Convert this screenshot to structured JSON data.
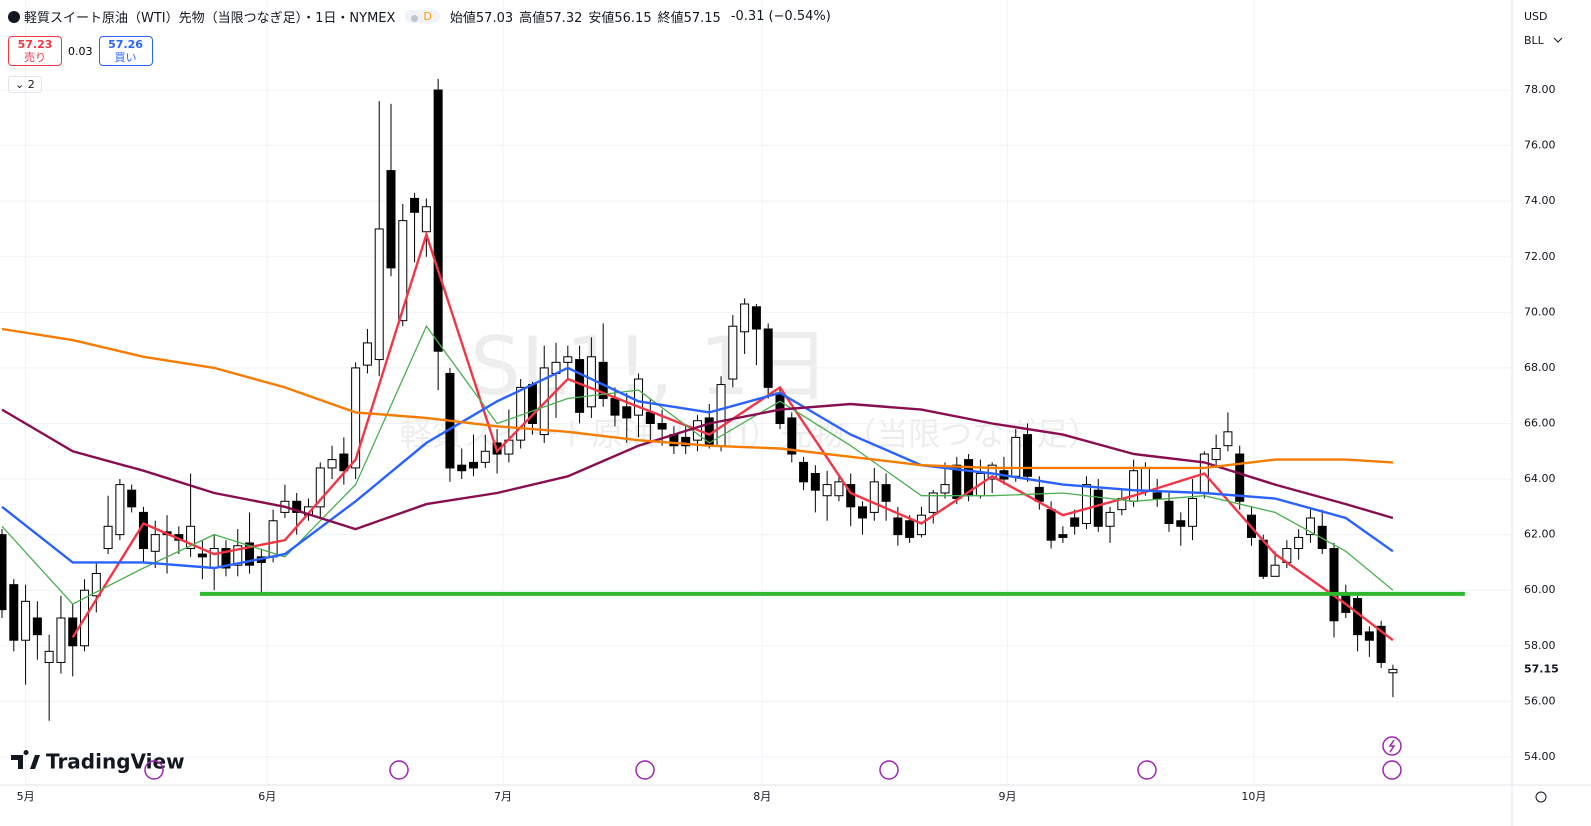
{
  "header": {
    "title": "軽質スイート原油（WTI）先物（当限つなぎ足）・1日・NYMEX",
    "interval_badge": "D",
    "ohlc": [
      {
        "label": "始値",
        "value": 57.03
      },
      {
        "label": "高値",
        "value": 57.32
      },
      {
        "label": "安値",
        "value": 56.15
      },
      {
        "label": "終値",
        "value": 57.15
      }
    ],
    "change": -0.31,
    "change_pct": {
      "value": -0.54,
      "label": "(−0.54%)"
    },
    "sell": {
      "price": 57.23,
      "label": "売り"
    },
    "spread": 0.03,
    "buy": {
      "price": 57.26,
      "label": "買い"
    },
    "indicator_count": 2
  },
  "watermark": {
    "symbol": "SL1!, 1日",
    "name": "軽質スイート原油（WTI）先物（当限つなぎ足）"
  },
  "axis_meta": {
    "currency": "USD",
    "unit": "BLL"
  },
  "logo": "TradingView",
  "chart_data": {
    "type": "candlestick",
    "xlim": [
      -0.17,
      128.1
    ],
    "ylim": [
      52.99,
      81.24
    ],
    "xticks": [
      {
        "value": 2,
        "label": "5月"
      },
      {
        "value": 22.5,
        "label": "6月"
      },
      {
        "value": 42.5,
        "label": "7月"
      },
      {
        "value": 64.5,
        "label": "8月"
      },
      {
        "value": 85.3,
        "label": "9月"
      },
      {
        "value": 106.2,
        "label": "10月"
      }
    ],
    "yticks": [
      {
        "value": 54,
        "label": "54.00"
      },
      {
        "value": 56,
        "label": "56.00"
      },
      {
        "value": 58,
        "label": "58.00"
      },
      {
        "value": 60,
        "label": "60.00"
      },
      {
        "value": 62,
        "label": "62.00"
      },
      {
        "value": 64,
        "label": "64.00"
      },
      {
        "value": 66,
        "label": "66.00"
      },
      {
        "value": 68,
        "label": "68.00"
      },
      {
        "value": 70,
        "label": "70.00"
      },
      {
        "value": 72,
        "label": "72.00"
      },
      {
        "value": 74,
        "label": "74.00"
      },
      {
        "value": 76,
        "label": "76.00"
      },
      {
        "value": 78,
        "label": "78.00"
      }
    ],
    "grid": true,
    "up_color": "#ffffff",
    "down_color": "#000000",
    "last_price": {
      "value": 57.15,
      "label": "57.15"
    },
    "candles": {
      "open": [
        62.0,
        60.2,
        58.2,
        59.0,
        57.4,
        57.4,
        59.0,
        58.0,
        59.8,
        61.5,
        62.0,
        63.6,
        62.8,
        61.4,
        62.1,
        62.0,
        61.5,
        61.3,
        60.8,
        61.5,
        60.9,
        61.7,
        61.2,
        61.2,
        62.8,
        63.2,
        62.7,
        63.0,
        64.4,
        64.9,
        64.4,
        68.1,
        68.3,
        75.1,
        69.7,
        74.1,
        72.9,
        78.0,
        67.8,
        64.5,
        64.6,
        64.6,
        65.3,
        64.9,
        65.4,
        67.4,
        65.6,
        67.8,
        68.2,
        68.3,
        66.6,
        68.2,
        66.9,
        66.6,
        66.3,
        66.4,
        66.0,
        65.6,
        65.5,
        65.4,
        66.2,
        65.2,
        67.6,
        69.3,
        70.2,
        69.4,
        67.1,
        66.2,
        64.6,
        64.2,
        63.4,
        63.4,
        63.8,
        63.0,
        62.8,
        63.8,
        62.6,
        62.5,
        62.0,
        62.8,
        63.5,
        64.5,
        64.7,
        63.4,
        64.0,
        64.3,
        64.1,
        65.6,
        63.7,
        62.9,
        62.0,
        62.6,
        62.4,
        63.6,
        62.3,
        62.9,
        63.2,
        63.6,
        63.5,
        63.2,
        62.5,
        62.3,
        63.5,
        64.7,
        65.2,
        64.9,
        62.7,
        61.8,
        60.5,
        61.0,
        61.5,
        62.0,
        62.3,
        61.5,
        59.8,
        59.7,
        58.5,
        58.7,
        57.03
      ],
      "high": [
        62.2,
        60.4,
        60.2,
        59.6,
        58.4,
        59.8,
        59.5,
        60.4,
        61.0,
        63.4,
        64.0,
        63.8,
        63.0,
        62.5,
        62.7,
        62.3,
        64.2,
        61.8,
        62.0,
        61.8,
        62.2,
        62.8,
        61.5,
        62.9,
        63.8,
        63.5,
        63.3,
        64.6,
        65.2,
        65.5,
        68.2,
        69.4,
        77.6,
        77.5,
        73.9,
        74.3,
        74.1,
        78.4,
        68.0,
        65.1,
        65.6,
        65.6,
        65.8,
        66.5,
        67.6,
        67.5,
        68.8,
        68.9,
        68.8,
        68.8,
        69.1,
        69.6,
        67.3,
        67.1,
        67.8,
        66.9,
        66.5,
        65.9,
        65.9,
        66.3,
        66.7,
        67.7,
        69.9,
        70.5,
        70.3,
        69.6,
        67.3,
        66.4,
        64.8,
        64.5,
        64.3,
        64.2,
        64.2,
        63.2,
        64.4,
        64.2,
        63.0,
        62.7,
        63.0,
        63.6,
        64.6,
        64.8,
        64.9,
        64.7,
        64.6,
        64.8,
        65.8,
        66.0,
        64.1,
        63.2,
        62.3,
        62.9,
        64.1,
        64.0,
        63.0,
        63.6,
        64.7,
        64.6,
        64.0,
        63.5,
        62.8,
        64.0,
        65.0,
        65.6,
        66.4,
        65.2,
        63.0,
        62.0,
        61.4,
        61.8,
        62.2,
        62.9,
        62.9,
        61.7,
        60.2,
        59.8,
        58.7,
        58.9,
        57.32
      ],
      "low": [
        59.0,
        57.8,
        56.6,
        57.5,
        55.3,
        57.0,
        56.9,
        57.8,
        59.2,
        61.3,
        61.8,
        62.8,
        61.0,
        60.8,
        60.6,
        61.3,
        61.2,
        60.4,
        60.0,
        60.5,
        60.5,
        60.6,
        59.9,
        61.0,
        62.6,
        62.0,
        62.5,
        62.6,
        64.0,
        63.8,
        64.0,
        67.8,
        67.7,
        71.3,
        69.5,
        71.8,
        72.0,
        67.2,
        63.9,
        64.0,
        64.1,
        64.4,
        64.2,
        64.6,
        65.1,
        65.6,
        65.3,
        66.2,
        67.6,
        66.0,
        66.2,
        66.6,
        65.9,
        65.3,
        65.5,
        65.3,
        65.2,
        64.9,
        64.9,
        65.0,
        65.1,
        65.0,
        67.3,
        68.5,
        68.1,
        66.9,
        65.8,
        64.6,
        63.6,
        62.8,
        62.5,
        63.2,
        62.3,
        62.0,
        62.5,
        62.5,
        61.6,
        61.7,
        61.9,
        62.4,
        63.3,
        63.1,
        63.2,
        63.3,
        63.5,
        63.8,
        63.9,
        63.9,
        62.9,
        61.5,
        61.7,
        62.0,
        62.2,
        62.1,
        61.7,
        62.7,
        63.0,
        63.4,
        63.0,
        62.1,
        61.6,
        61.8,
        63.3,
        64.4,
        65.0,
        62.9,
        61.6,
        60.4,
        60.5,
        60.8,
        61.1,
        61.7,
        61.3,
        58.3,
        59.0,
        57.8,
        57.6,
        57.2,
        56.15
      ],
      "close": [
        59.3,
        58.2,
        59.6,
        58.4,
        57.8,
        59.0,
        58.0,
        60.0,
        60.6,
        62.3,
        63.8,
        63.0,
        61.5,
        62.0,
        62.0,
        61.8,
        62.3,
        61.2,
        61.5,
        60.8,
        61.6,
        60.9,
        61.0,
        62.5,
        63.2,
        62.8,
        63.0,
        64.4,
        64.7,
        64.3,
        68.0,
        68.9,
        73.0,
        71.6,
        73.3,
        73.6,
        73.8,
        68.6,
        64.4,
        64.3,
        64.4,
        65.0,
        64.9,
        65.4,
        67.3,
        66.0,
        68.0,
        68.2,
        68.4,
        66.4,
        68.4,
        66.9,
        66.3,
        66.2,
        67.6,
        66.0,
        65.8,
        65.2,
        65.2,
        66.1,
        65.2,
        67.4,
        69.5,
        70.3,
        69.4,
        67.3,
        66.0,
        64.9,
        63.9,
        63.6,
        63.8,
        63.9,
        63.0,
        62.6,
        63.9,
        63.2,
        62.0,
        61.9,
        62.7,
        63.5,
        63.8,
        63.3,
        63.4,
        64.2,
        64.5,
        64.0,
        65.5,
        64.1,
        63.2,
        61.8,
        61.9,
        62.3,
        63.8,
        62.3,
        62.8,
        63.3,
        64.3,
        64.4,
        63.3,
        62.4,
        62.3,
        63.3,
        64.9,
        65.1,
        65.7,
        63.2,
        61.9,
        60.5,
        60.9,
        61.5,
        61.9,
        62.6,
        61.5,
        58.9,
        59.2,
        58.4,
        58.2,
        57.4,
        57.15
      ]
    },
    "series": [
      {
        "color": "#f23645",
        "x": [
          0,
          6,
          12,
          18,
          24,
          30,
          36,
          42,
          48,
          54,
          60,
          66,
          72,
          78,
          84,
          90,
          96,
          102,
          108,
          114,
          118
        ],
        "values": [
          null,
          58.3,
          62.4,
          61.3,
          61.8,
          64.7,
          72.8,
          65.0,
          67.6,
          66.6,
          65.6,
          67.3,
          63.5,
          62.4,
          64.1,
          62.7,
          63.4,
          64.2,
          61.3,
          59.5,
          58.2
        ]
      },
      {
        "color": "#4caf50",
        "x": [
          0,
          6,
          12,
          18,
          24,
          30,
          36,
          42,
          48,
          54,
          60,
          66,
          72,
          78,
          84,
          90,
          96,
          102,
          108,
          114,
          118
        ],
        "values": [
          62.3,
          59.5,
          60.8,
          62.0,
          61.2,
          63.8,
          69.5,
          66.0,
          66.9,
          67.2,
          65.3,
          66.8,
          65.2,
          63.4,
          63.4,
          63.5,
          63.2,
          63.4,
          62.8,
          61.4,
          60.0
        ]
      },
      {
        "color": "#2962ff",
        "x": [
          0,
          6,
          12,
          18,
          24,
          30,
          36,
          42,
          48,
          54,
          60,
          66,
          72,
          78,
          84,
          90,
          96,
          102,
          108,
          114,
          118
        ],
        "values": [
          63.0,
          61.0,
          61.0,
          60.8,
          61.3,
          63.2,
          65.3,
          66.8,
          68.0,
          66.8,
          66.4,
          67.1,
          65.6,
          64.5,
          64.2,
          63.8,
          63.6,
          63.5,
          63.3,
          62.6,
          61.4
        ]
      },
      {
        "color": "#880e4f",
        "x": [
          0,
          6,
          12,
          18,
          24,
          30,
          36,
          42,
          48,
          54,
          60,
          66,
          72,
          78,
          84,
          90,
          96,
          102,
          108,
          114,
          118
        ],
        "values": [
          66.5,
          65.0,
          64.3,
          63.5,
          63.0,
          62.2,
          63.1,
          63.5,
          64.1,
          65.2,
          66.0,
          66.5,
          66.7,
          66.5,
          66.0,
          65.6,
          64.9,
          64.6,
          63.8,
          63.1,
          62.6
        ]
      },
      {
        "color": "#f57c00",
        "x": [
          0,
          6,
          12,
          18,
          24,
          30,
          36,
          42,
          48,
          54,
          60,
          66,
          72,
          78,
          84,
          90,
          96,
          102,
          108,
          114,
          118
        ],
        "values": [
          69.4,
          69.0,
          68.4,
          68.0,
          67.3,
          66.4,
          66.2,
          65.9,
          65.7,
          65.4,
          65.2,
          65.1,
          64.8,
          64.5,
          64.4,
          64.4,
          64.4,
          64.4,
          64.7,
          64.7,
          64.6
        ]
      }
    ],
    "support_line": {
      "value": 59.87,
      "x": [
        16.8,
        124.1
      ],
      "color": "#2eb82e"
    }
  }
}
